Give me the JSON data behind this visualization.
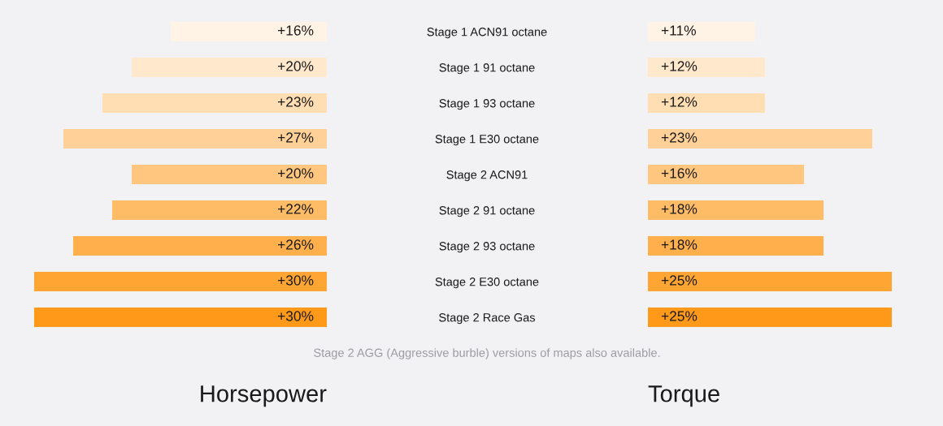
{
  "chart_data": [
    {
      "type": "bar",
      "orientation": "horizontal",
      "xlabel": "Horsepower",
      "categories": [
        "Stage 1 ACN91 octane",
        "Stage 1 91 octane",
        "Stage 1 93 octane",
        "Stage 1 E30 octane",
        "Stage 2 ACN91",
        "Stage 2 91 octane",
        "Stage 2 93 octane",
        "Stage 2 E30 octane",
        "Stage 2 Race Gas"
      ],
      "values": [
        16,
        20,
        23,
        27,
        20,
        22,
        26,
        30,
        30
      ],
      "value_labels": [
        "+16%",
        "+20%",
        "+23%",
        "+27%",
        "+20%",
        "+22%",
        "+26%",
        "+30%",
        "+30%"
      ],
      "colors": [
        "#fff3e5",
        "#ffe8cc",
        "#ffdeb3",
        "#ffd199",
        "#ffc680",
        "#ffbc66",
        "#ffb04d",
        "#ffa533",
        "#ff991a"
      ],
      "tick_labels": "y",
      "annotations": [
        "Stage 2 AGG (Aggressive burble) versions of maps also available."
      ]
    },
    {
      "type": "bar",
      "orientation": "horizontal",
      "xlabel": "Torque",
      "categories": [
        null,
        null,
        null,
        null,
        null,
        null,
        null,
        null,
        null
      ],
      "values": [
        11,
        12,
        12,
        23,
        16,
        18,
        18,
        25,
        25
      ],
      "value_labels": [
        "+11%",
        "+12%",
        "+12%",
        "+23%",
        "+16%",
        "+18%",
        "+18%",
        "+25%",
        "+25%"
      ],
      "colors": [
        "#fff3e5",
        "#ffe8cc",
        "#ffdeb3",
        "#ffd199",
        "#ffc680",
        "#ffbc66",
        "#ffb04d",
        "#ffa533",
        "#ff991a"
      ],
      "tick_labels": false
    }
  ]
}
